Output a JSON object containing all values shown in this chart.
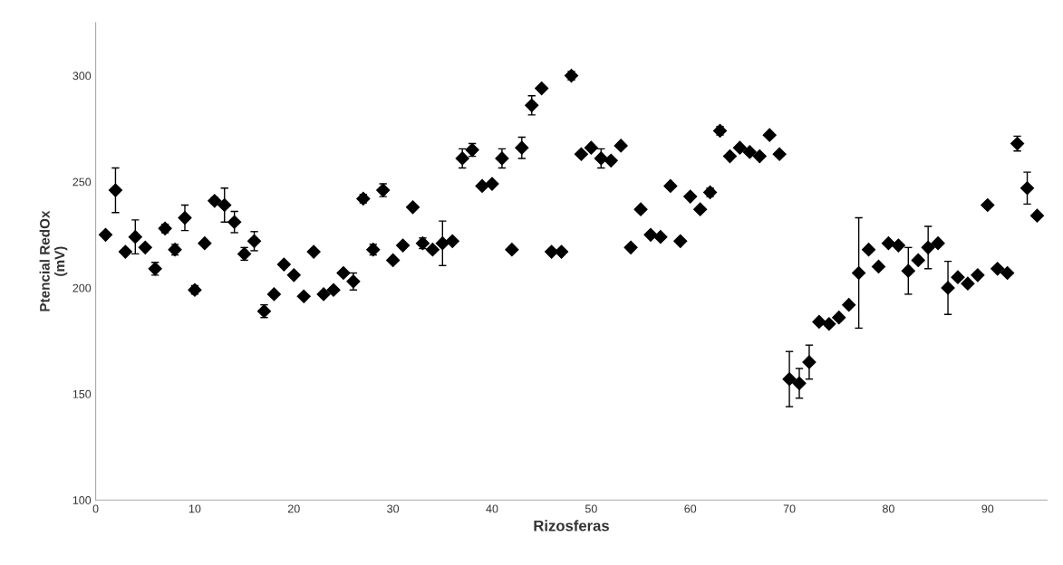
{
  "chart_data": {
    "type": "scatter",
    "xlabel": "Rizosferas",
    "ylabel": "Ptencial RedOx\n(mV)",
    "x": [
      1,
      2,
      3,
      4,
      5,
      6,
      7,
      8,
      9,
      10,
      11,
      12,
      13,
      14,
      15,
      16,
      17,
      18,
      19,
      20,
      21,
      22,
      23,
      24,
      25,
      26,
      27,
      28,
      29,
      30,
      31,
      32,
      33,
      34,
      35,
      36,
      37,
      38,
      39,
      40,
      41,
      42,
      43,
      44,
      45,
      46,
      47,
      48,
      49,
      50,
      51,
      52,
      53,
      54,
      55,
      56,
      57,
      58,
      59,
      60,
      61,
      62,
      63,
      64,
      65,
      66,
      67,
      68,
      69,
      70,
      71,
      72,
      73,
      74,
      75,
      76,
      77,
      78,
      79,
      80,
      81,
      82,
      83,
      84,
      85,
      86,
      87,
      88,
      89,
      90,
      91,
      92,
      93,
      94,
      95
    ],
    "series": [
      {
        "color": "#000000",
        "values": [
          225,
          246,
          217,
          224,
          219,
          209,
          228,
          218,
          233,
          199,
          221,
          241,
          239,
          231,
          216,
          222,
          189,
          197,
          211,
          206,
          196,
          217,
          197,
          199,
          207,
          203,
          242,
          218,
          246,
          213,
          220,
          238,
          221,
          218,
          221,
          222,
          261,
          265,
          248,
          249,
          261,
          218,
          266,
          286,
          294,
          217,
          217,
          300,
          263,
          266,
          261,
          260,
          267,
          219,
          237,
          225,
          224,
          248,
          222,
          243,
          237,
          245,
          274,
          262,
          266,
          264,
          262,
          272,
          263,
          157,
          155,
          165,
          184,
          183,
          186,
          192,
          207,
          218,
          210,
          221,
          220,
          208,
          213,
          219,
          221,
          200,
          205,
          202,
          206,
          239,
          209,
          207,
          268,
          247,
          234
        ],
        "errors": [
          null,
          10.5,
          null,
          8,
          null,
          3,
          2,
          2.5,
          6,
          2,
          null,
          1.5,
          8,
          5,
          3,
          4.5,
          3,
          null,
          null,
          null,
          null,
          null,
          null,
          null,
          null,
          4,
          2,
          2.5,
          3,
          null,
          null,
          null,
          2.5,
          null,
          10.5,
          null,
          4.5,
          3,
          null,
          null,
          4.5,
          null,
          5,
          4.5,
          null,
          null,
          null,
          2,
          null,
          null,
          4.5,
          null,
          null,
          null,
          null,
          null,
          null,
          null,
          null,
          null,
          null,
          2,
          2,
          null,
          null,
          null,
          null,
          null,
          null,
          13,
          7,
          8,
          null,
          null,
          null,
          null,
          26,
          null,
          null,
          null,
          null,
          11,
          null,
          10,
          null,
          12.5,
          null,
          null,
          null,
          null,
          null,
          null,
          3.5,
          7.5,
          null
        ]
      }
    ],
    "xlim": [
      0,
      96
    ],
    "xticks": [
      0,
      10,
      20,
      30,
      40,
      50,
      60,
      70,
      80,
      90
    ],
    "ylim": [
      100,
      325
    ],
    "yticks": [
      100,
      150,
      200,
      250,
      300
    ],
    "grid": false,
    "legend": false,
    "marker": "diamond"
  }
}
